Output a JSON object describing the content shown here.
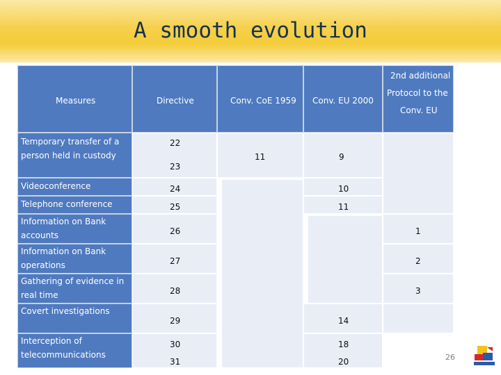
{
  "title": "A smooth evolution",
  "headers": {
    "measures": "Measures",
    "directive": "Directive",
    "coe": "Conv. CoE 1959",
    "eu": "Conv.  EU  2000",
    "protocol_line1": "2nd additional",
    "protocol_line2": "Protocol  to the",
    "protocol_line3": "Conv.  EU"
  },
  "rows": [
    {
      "measure": "Temporary transfer of a person held in custody",
      "directive": [
        "22",
        "23"
      ],
      "coe": "11",
      "eu": "9",
      "protocol": ""
    },
    {
      "measure": "Videoconference",
      "directive": "24",
      "coe": "",
      "eu": "10",
      "protocol": ""
    },
    {
      "measure": "Telephone conference",
      "directive": "25",
      "coe": "",
      "eu": "11",
      "protocol": ""
    },
    {
      "measure": "Information on Bank accounts",
      "directive": "26",
      "coe": "",
      "eu": "",
      "protocol": "1"
    },
    {
      "measure": "Information on Bank operations",
      "directive": "27",
      "coe": "",
      "eu": "",
      "protocol": "2"
    },
    {
      "measure": "Gathering of evidence in real time",
      "directive": "28",
      "coe": "",
      "eu": "",
      "protocol": "3"
    },
    {
      "measure": "Covert investigations",
      "directive": "29",
      "coe": "",
      "eu": "14",
      "protocol": ""
    },
    {
      "measure": "Interception of telecommunications",
      "directive": [
        "30",
        "31"
      ],
      "coe": "",
      "eu": [
        "18",
        "20"
      ],
      "protocol": ""
    }
  ],
  "page_number": "26",
  "colors": {
    "header_cell": "#4f7abf",
    "body_cell": "#e9eef6",
    "banner": "#f4cc3a",
    "title": "#17324f"
  }
}
